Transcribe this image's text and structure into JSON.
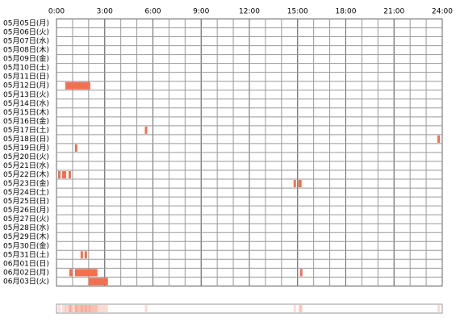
{
  "chart_data": {
    "type": "timeline",
    "categories": [
      "05月05日(月)",
      "05月06日(火)",
      "05月07日(水)",
      "05月08日(木)",
      "05月09日(金)",
      "05月10日(土)",
      "05月11日(日)",
      "05月12日(月)",
      "05月13日(火)",
      "05月14日(水)",
      "05月15日(木)",
      "05月16日(金)",
      "05月17日(土)",
      "05月18日(日)",
      "05月19日(月)",
      "05月20日(火)",
      "05月21日(水)",
      "05月22日(木)",
      "05月23日(金)",
      "05月24日(土)",
      "05月25日(日)",
      "05月26日(月)",
      "05月27日(火)",
      "05月28日(水)",
      "05月29日(木)",
      "05月30日(金)",
      "05月31日(土)",
      "06月01日(日)",
      "06月02日(月)",
      "06月03日(火)"
    ],
    "values": [
      [],
      [],
      [],
      [],
      [],
      [],
      [],
      [
        [
          0.55,
          2.1
        ]
      ],
      [],
      [],
      [],
      [],
      [
        [
          5.5,
          5.65
        ]
      ],
      [
        [
          23.7,
          23.85
        ]
      ],
      [
        [
          1.15,
          1.3
        ]
      ],
      [],
      [],
      [
        [
          0.1,
          0.25
        ],
        [
          0.35,
          0.6
        ],
        [
          0.75,
          0.9
        ]
      ],
      [
        [
          14.75,
          14.9
        ],
        [
          15.05,
          15.25
        ]
      ],
      [],
      [],
      [],
      [],
      [],
      [],
      [],
      [
        [
          1.5,
          1.65
        ],
        [
          1.75,
          1.9
        ]
      ],
      [],
      [
        [
          0.8,
          1.0
        ],
        [
          1.15,
          2.55
        ],
        [
          15.15,
          15.3
        ]
      ],
      [
        [
          2.0,
          3.2
        ]
      ]
    ],
    "color": "#f07050",
    "xlim": [
      0,
      24
    ],
    "xticks": [
      {
        "value": 0,
        "label": "0:00"
      },
      {
        "value": 3,
        "label": "3:00"
      },
      {
        "value": 6,
        "label": "6:00"
      },
      {
        "value": 9,
        "label": "9:00"
      },
      {
        "value": 12,
        "label": "12:00"
      },
      {
        "value": 15,
        "label": "15:00"
      },
      {
        "value": 18,
        "label": "18:00"
      },
      {
        "value": 21,
        "label": "21:00"
      },
      {
        "value": 24,
        "label": "24:00"
      }
    ],
    "grid_step": 1
  }
}
